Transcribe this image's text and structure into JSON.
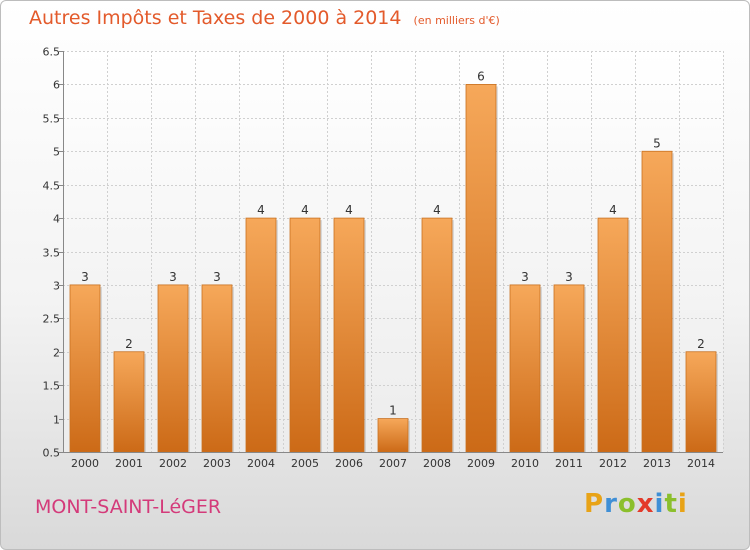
{
  "header": {
    "title": "Autres Impôts et Taxes de 2000 à 2014",
    "subtitle": "(en milliers d'€)"
  },
  "footer": {
    "city": "MONT-SAINT-LéGER",
    "brand": {
      "letters": [
        "P",
        "r",
        "o",
        "x",
        "i",
        "t",
        "i"
      ],
      "colors": [
        "#e8a317",
        "#3f8fd6",
        "#8bbf2c",
        "#e33a2a",
        "#3f8fd6",
        "#8bbf2c",
        "#e8a317"
      ]
    }
  },
  "colors": {
    "bar_light": "#f6a85a",
    "bar_dark": "#cc6a17",
    "grid": "#d0d0d0"
  },
  "chart_data": {
    "type": "bar",
    "title": "Autres Impôts et Taxes de 2000 à 2014",
    "subtitle": "(en milliers d'€)",
    "categories": [
      "2000",
      "2001",
      "2002",
      "2003",
      "2004",
      "2005",
      "2006",
      "2007",
      "2008",
      "2009",
      "2010",
      "2011",
      "2012",
      "2013",
      "2014"
    ],
    "values": [
      3,
      2,
      3,
      3,
      4,
      4,
      4,
      1,
      4,
      6,
      3,
      3,
      4,
      5,
      2
    ],
    "ylim": [
      0.5,
      6.5
    ],
    "yticks": [
      0.5,
      1,
      1.5,
      2,
      2.5,
      3,
      3.5,
      4,
      4.5,
      5,
      5.5,
      6,
      6.5
    ],
    "ytick_labels": [
      "0.5",
      "1",
      "1.5",
      "2",
      "2.5",
      "3",
      "3.5",
      "4",
      "4.5",
      "5",
      "5.5",
      "6",
      "6.5"
    ],
    "grid": true,
    "legend": "none"
  }
}
